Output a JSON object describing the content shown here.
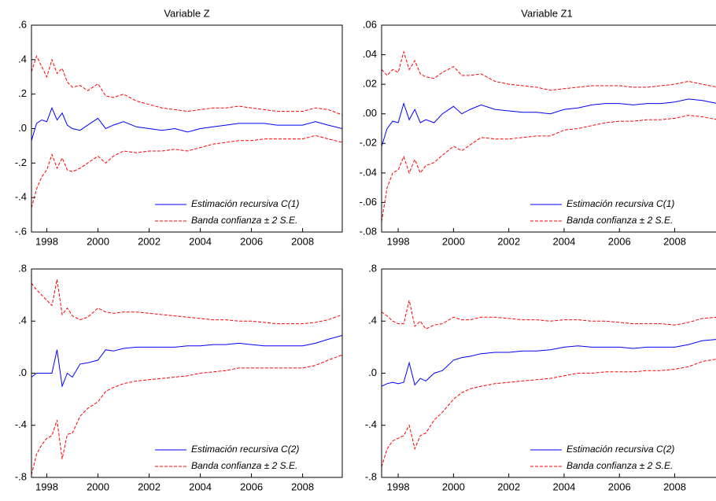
{
  "chart_data": [
    {
      "type": "line",
      "title": "Variable Z",
      "x": [
        1997.4,
        1997.6,
        1997.8,
        1998.0,
        1998.2,
        1998.4,
        1998.6,
        1998.8,
        1999.0,
        1999.3,
        1999.6,
        2000.0,
        2000.3,
        2000.6,
        2001.0,
        2001.5,
        2002.0,
        2002.5,
        2003.0,
        2003.5,
        2004.0,
        2004.5,
        2005.0,
        2005.5,
        2006.0,
        2006.5,
        2007.0,
        2007.5,
        2008.0,
        2008.5,
        2009.0,
        2009.55
      ],
      "series": [
        {
          "name": "Estimación recursiva C(1)",
          "color": "#0000ff",
          "dashed": false,
          "values": [
            -0.07,
            0.03,
            0.05,
            0.04,
            0.12,
            0.05,
            0.09,
            0.02,
            0.0,
            -0.01,
            0.02,
            0.06,
            0.0,
            0.02,
            0.04,
            0.01,
            0.0,
            -0.01,
            0.0,
            -0.02,
            0.0,
            0.01,
            0.02,
            0.03,
            0.03,
            0.03,
            0.02,
            0.02,
            0.02,
            0.04,
            0.02,
            0.0
          ]
        },
        {
          "name": "Banda confianza ± 2 S.E.",
          "color": "#ff0000",
          "dashed": true,
          "values": [
            0.33,
            0.42,
            0.36,
            0.3,
            0.4,
            0.32,
            0.35,
            0.27,
            0.24,
            0.25,
            0.22,
            0.26,
            0.19,
            0.18,
            0.2,
            0.16,
            0.14,
            0.12,
            0.11,
            0.1,
            0.11,
            0.12,
            0.12,
            0.13,
            0.12,
            0.11,
            0.1,
            0.1,
            0.1,
            0.12,
            0.11,
            0.08
          ]
        },
        {
          "color": "#ff0000",
          "dashed": true,
          "values": [
            -0.46,
            -0.35,
            -0.28,
            -0.24,
            -0.15,
            -0.23,
            -0.17,
            -0.24,
            -0.25,
            -0.23,
            -0.2,
            -0.16,
            -0.2,
            -0.16,
            -0.13,
            -0.14,
            -0.13,
            -0.13,
            -0.12,
            -0.13,
            -0.11,
            -0.09,
            -0.08,
            -0.07,
            -0.07,
            -0.06,
            -0.06,
            -0.06,
            -0.06,
            -0.04,
            -0.06,
            -0.08
          ]
        }
      ],
      "xlim": [
        1997.4,
        2009.55
      ],
      "xticks": [
        1998,
        2000,
        2002,
        2004,
        2006,
        2008
      ],
      "ylim": [
        -0.6,
        0.6
      ],
      "yticks": [
        {
          "value": 0.6,
          "label": ".6"
        },
        {
          "value": 0.4,
          "label": ".4"
        },
        {
          "value": 0.2,
          "label": ".2"
        },
        {
          "value": 0,
          "label": ".0"
        },
        {
          "value": -0.2,
          "label": "-.2"
        },
        {
          "value": -0.4,
          "label": "-.4"
        },
        {
          "value": -0.6,
          "label": "-.6"
        }
      ]
    },
    {
      "type": "line",
      "title": "Variable Z1",
      "x": [
        1997.4,
        1997.6,
        1997.8,
        1998.0,
        1998.2,
        1998.4,
        1998.6,
        1998.8,
        1999.0,
        1999.3,
        1999.6,
        2000.0,
        2000.3,
        2000.6,
        2001.0,
        2001.5,
        2002.0,
        2002.5,
        2003.0,
        2003.5,
        2004.0,
        2004.5,
        2005.0,
        2005.5,
        2006.0,
        2006.5,
        2007.0,
        2007.5,
        2008.0,
        2008.5,
        2009.0,
        2009.55
      ],
      "series": [
        {
          "name": "Estimación recursiva C(1)",
          "color": "#0000ff",
          "dashed": false,
          "values": [
            -0.022,
            -0.01,
            -0.005,
            -0.006,
            0.007,
            -0.004,
            0.003,
            -0.006,
            -0.004,
            -0.006,
            0.0,
            0.005,
            0.0,
            0.003,
            0.006,
            0.003,
            0.002,
            0.001,
            0.001,
            0.0,
            0.003,
            0.004,
            0.006,
            0.007,
            0.007,
            0.006,
            0.007,
            0.007,
            0.008,
            0.01,
            0.009,
            0.007
          ]
        },
        {
          "name": "Banda confianza ± 2 S.E.",
          "color": "#ff0000",
          "dashed": true,
          "values": [
            0.03,
            0.026,
            0.03,
            0.028,
            0.042,
            0.03,
            0.036,
            0.027,
            0.025,
            0.024,
            0.028,
            0.032,
            0.026,
            0.026,
            0.027,
            0.022,
            0.02,
            0.019,
            0.018,
            0.016,
            0.017,
            0.018,
            0.019,
            0.019,
            0.019,
            0.018,
            0.018,
            0.019,
            0.02,
            0.022,
            0.02,
            0.018
          ]
        },
        {
          "color": "#ff0000",
          "dashed": true,
          "values": [
            -0.073,
            -0.05,
            -0.04,
            -0.038,
            -0.029,
            -0.04,
            -0.031,
            -0.04,
            -0.035,
            -0.033,
            -0.028,
            -0.022,
            -0.025,
            -0.021,
            -0.016,
            -0.017,
            -0.017,
            -0.016,
            -0.015,
            -0.015,
            -0.011,
            -0.01,
            -0.008,
            -0.006,
            -0.005,
            -0.005,
            -0.004,
            -0.004,
            -0.003,
            -0.001,
            -0.002,
            -0.004
          ]
        }
      ],
      "xlim": [
        1997.4,
        2009.55
      ],
      "xticks": [
        1998,
        2000,
        2002,
        2004,
        2006,
        2008
      ],
      "ylim": [
        -0.08,
        0.06
      ],
      "yticks": [
        {
          "value": 0.06,
          "label": ".06"
        },
        {
          "value": 0.04,
          "label": ".04"
        },
        {
          "value": 0.02,
          "label": ".02"
        },
        {
          "value": 0,
          "label": ".00"
        },
        {
          "value": -0.02,
          "label": "-.02"
        },
        {
          "value": -0.04,
          "label": "-.04"
        },
        {
          "value": -0.06,
          "label": "-.06"
        },
        {
          "value": -0.08,
          "label": "-.08"
        }
      ]
    },
    {
      "type": "line",
      "x": [
        1997.4,
        1997.6,
        1997.8,
        1998.0,
        1998.2,
        1998.4,
        1998.6,
        1998.8,
        1999.0,
        1999.3,
        1999.6,
        2000.0,
        2000.3,
        2000.6,
        2001.0,
        2001.5,
        2002.0,
        2002.5,
        2003.0,
        2003.5,
        2004.0,
        2004.5,
        2005.0,
        2005.5,
        2006.0,
        2006.5,
        2007.0,
        2007.5,
        2008.0,
        2008.5,
        2009.0,
        2009.55
      ],
      "series": [
        {
          "name": "Estimación recursiva C(2)",
          "color": "#0000ff",
          "dashed": false,
          "values": [
            -0.03,
            0.0,
            0.0,
            0.0,
            0.0,
            0.18,
            -0.1,
            0.0,
            -0.03,
            0.07,
            0.08,
            0.1,
            0.18,
            0.17,
            0.19,
            0.2,
            0.2,
            0.2,
            0.2,
            0.21,
            0.21,
            0.22,
            0.22,
            0.23,
            0.22,
            0.21,
            0.21,
            0.21,
            0.21,
            0.23,
            0.26,
            0.29
          ]
        },
        {
          "name": "Banda confianza ± 2 S.E.",
          "color": "#ff0000",
          "dashed": true,
          "values": [
            0.69,
            0.64,
            0.6,
            0.56,
            0.52,
            0.72,
            0.45,
            0.5,
            0.44,
            0.41,
            0.43,
            0.5,
            0.47,
            0.46,
            0.47,
            0.47,
            0.46,
            0.45,
            0.44,
            0.43,
            0.42,
            0.41,
            0.41,
            0.4,
            0.4,
            0.39,
            0.38,
            0.38,
            0.38,
            0.39,
            0.41,
            0.45
          ]
        },
        {
          "color": "#ff0000",
          "dashed": true,
          "values": [
            -0.78,
            -0.62,
            -0.55,
            -0.5,
            -0.48,
            -0.36,
            -0.66,
            -0.47,
            -0.46,
            -0.33,
            -0.27,
            -0.22,
            -0.14,
            -0.11,
            -0.08,
            -0.06,
            -0.05,
            -0.04,
            -0.03,
            -0.02,
            0.0,
            0.01,
            0.02,
            0.04,
            0.04,
            0.04,
            0.04,
            0.04,
            0.04,
            0.06,
            0.1,
            0.14
          ]
        }
      ],
      "xlim": [
        1997.4,
        2009.55
      ],
      "xticks": [
        1998,
        2000,
        2002,
        2004,
        2006,
        2008
      ],
      "ylim": [
        -0.8,
        0.8
      ],
      "yticks": [
        {
          "value": 0.8,
          "label": ".8"
        },
        {
          "value": 0.4,
          "label": ".4"
        },
        {
          "value": 0,
          "label": ".0"
        },
        {
          "value": -0.4,
          "label": "-.4"
        },
        {
          "value": -0.8,
          "label": "-.8"
        }
      ]
    },
    {
      "type": "line",
      "x": [
        1997.4,
        1997.6,
        1997.8,
        1998.0,
        1998.2,
        1998.4,
        1998.6,
        1998.8,
        1999.0,
        1999.3,
        1999.6,
        2000.0,
        2000.3,
        2000.6,
        2001.0,
        2001.5,
        2002.0,
        2002.5,
        2003.0,
        2003.5,
        2004.0,
        2004.5,
        2005.0,
        2005.5,
        2006.0,
        2006.5,
        2007.0,
        2007.5,
        2008.0,
        2008.5,
        2009.0,
        2009.55
      ],
      "series": [
        {
          "name": "Estimación recursiva C(2)",
          "color": "#0000ff",
          "dashed": false,
          "values": [
            -0.1,
            -0.08,
            -0.07,
            -0.08,
            -0.07,
            0.08,
            -0.09,
            -0.04,
            -0.06,
            0.0,
            0.02,
            0.1,
            0.12,
            0.13,
            0.15,
            0.16,
            0.16,
            0.17,
            0.17,
            0.18,
            0.2,
            0.21,
            0.2,
            0.2,
            0.2,
            0.19,
            0.2,
            0.2,
            0.2,
            0.22,
            0.25,
            0.26
          ]
        },
        {
          "name": "Banda confianza ± 2 S.E.",
          "color": "#ff0000",
          "dashed": true,
          "values": [
            0.47,
            0.44,
            0.4,
            0.38,
            0.38,
            0.56,
            0.36,
            0.4,
            0.34,
            0.37,
            0.38,
            0.43,
            0.41,
            0.41,
            0.43,
            0.43,
            0.42,
            0.41,
            0.41,
            0.4,
            0.41,
            0.41,
            0.4,
            0.4,
            0.39,
            0.38,
            0.38,
            0.38,
            0.37,
            0.39,
            0.42,
            0.43
          ]
        },
        {
          "color": "#ff0000",
          "dashed": true,
          "values": [
            -0.72,
            -0.58,
            -0.52,
            -0.5,
            -0.48,
            -0.4,
            -0.58,
            -0.48,
            -0.46,
            -0.36,
            -0.3,
            -0.2,
            -0.15,
            -0.12,
            -0.1,
            -0.08,
            -0.07,
            -0.06,
            -0.05,
            -0.04,
            -0.02,
            0.0,
            0.0,
            0.01,
            0.01,
            0.01,
            0.02,
            0.02,
            0.03,
            0.05,
            0.09,
            0.11
          ]
        }
      ],
      "xlim": [
        1997.4,
        2009.55
      ],
      "xticks": [
        1998,
        2000,
        2002,
        2004,
        2006,
        2008
      ],
      "ylim": [
        -0.8,
        0.8
      ],
      "yticks": [
        {
          "value": 0.8,
          "label": ".8"
        },
        {
          "value": 0.4,
          "label": ".4"
        },
        {
          "value": 0,
          "label": ".0"
        },
        {
          "value": -0.4,
          "label": "-.4"
        },
        {
          "value": -0.8,
          "label": "-.8"
        }
      ]
    }
  ]
}
